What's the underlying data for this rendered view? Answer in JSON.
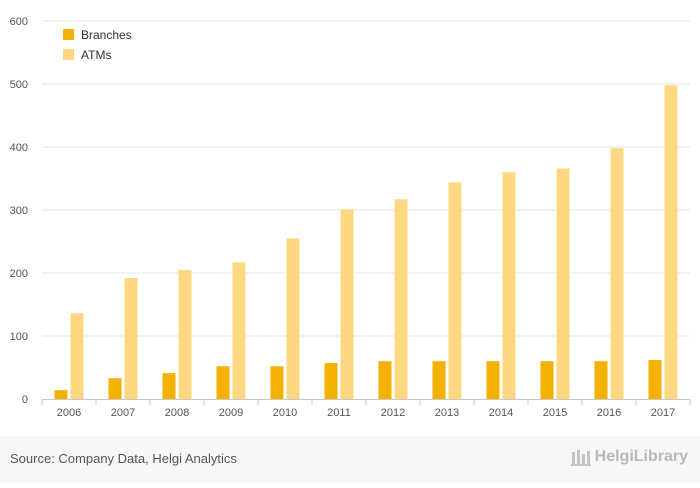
{
  "chart_data": {
    "type": "bar",
    "categories": [
      "2006",
      "2007",
      "2008",
      "2009",
      "2010",
      "2011",
      "2012",
      "2013",
      "2014",
      "2015",
      "2016",
      "2017"
    ],
    "series": [
      {
        "name": "Branches",
        "values": [
          14,
          33,
          41,
          52,
          52,
          57,
          60,
          60,
          60,
          60,
          60,
          62
        ],
        "color": "#f5b100"
      },
      {
        "name": "ATMs",
        "values": [
          136,
          192,
          205,
          217,
          255,
          301,
          317,
          344,
          360,
          366,
          398,
          498
        ],
        "color": "#fdd782"
      }
    ],
    "yticks": [
      0,
      100,
      200,
      300,
      400,
      500,
      600
    ],
    "ylim": [
      0,
      600
    ],
    "grid": true,
    "legend_position": "top-left"
  },
  "footer": {
    "source": "Source: Company Data, Helgi Analytics",
    "brand": "HelgiLibrary"
  }
}
